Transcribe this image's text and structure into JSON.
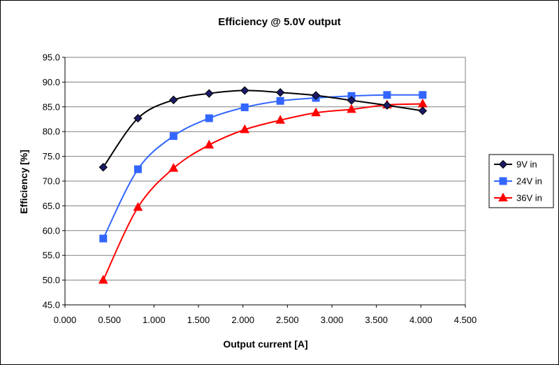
{
  "chart_data": {
    "type": "line",
    "title": "Efficiency @ 5.0V output",
    "xlabel": "Output current [A]",
    "ylabel": "Efficiency [%]",
    "xlim": [
      0.0,
      4.5
    ],
    "ylim": [
      45.0,
      95.0
    ],
    "x_ticks": [
      "0.000",
      "0.500",
      "1.000",
      "1.500",
      "2.000",
      "2.500",
      "3.000",
      "3.500",
      "4.000",
      "4.500"
    ],
    "y_ticks": [
      "45.0",
      "50.0",
      "55.0",
      "60.0",
      "65.0",
      "70.0",
      "75.0",
      "80.0",
      "85.0",
      "90.0",
      "95.0"
    ],
    "grid": "horizontal",
    "legend_position": "right",
    "series": [
      {
        "name": "9V in",
        "color": "#000000",
        "fill": "#1a1a66",
        "marker": "diamond",
        "x": [
          0.43,
          0.82,
          1.22,
          1.62,
          2.02,
          2.42,
          2.82,
          3.22,
          3.62,
          4.02
        ],
        "y": [
          72.8,
          82.7,
          86.4,
          87.7,
          88.3,
          87.9,
          87.3,
          86.3,
          85.3,
          84.2
        ]
      },
      {
        "name": "24V in",
        "color": "#3366ff",
        "fill": "#3366ff",
        "marker": "square",
        "x": [
          0.43,
          0.82,
          1.22,
          1.62,
          2.02,
          2.42,
          2.82,
          3.22,
          3.62,
          4.02
        ],
        "y": [
          58.4,
          72.4,
          79.1,
          82.7,
          84.9,
          86.2,
          86.8,
          87.2,
          87.4,
          87.4
        ]
      },
      {
        "name": "36V in",
        "color": "#ff0000",
        "fill": "#ff0000",
        "marker": "triangle",
        "x": [
          0.43,
          0.82,
          1.22,
          1.62,
          2.02,
          2.42,
          2.82,
          3.22,
          3.62,
          4.02
        ],
        "y": [
          50.0,
          64.7,
          72.6,
          77.3,
          80.4,
          82.3,
          83.8,
          84.5,
          85.4,
          85.6
        ]
      }
    ]
  }
}
